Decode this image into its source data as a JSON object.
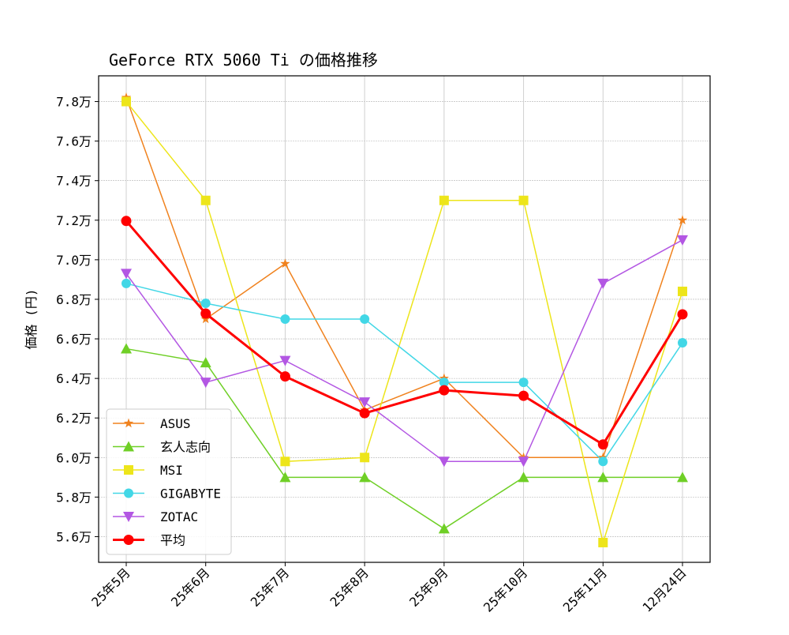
{
  "chart_data": {
    "type": "line",
    "title": "GeForce RTX 5060 Ti の価格推移",
    "xlabel": "",
    "ylabel": "価格 (円)",
    "categories": [
      "25年5月",
      "25年6月",
      "25年7月",
      "25年8月",
      "25年9月",
      "25年10月",
      "25年11月",
      "12月24日"
    ],
    "ylim": [
      54700,
      79300
    ],
    "yticks": [
      56000,
      58000,
      60000,
      62000,
      64000,
      66000,
      68000,
      70000,
      72000,
      74000,
      76000,
      78000
    ],
    "ytick_labels": [
      "5.6万",
      "5.8万",
      "6.0万",
      "6.2万",
      "6.4万",
      "6.6万",
      "6.8万",
      "7.0万",
      "7.2万",
      "7.4万",
      "7.6万",
      "7.8万"
    ],
    "grid": true,
    "legend_position": "lower-left",
    "series": [
      {
        "name": "ASUS",
        "color": "#f0821e",
        "marker": "star",
        "values": [
          78200,
          67000,
          69800,
          62400,
          64000,
          60000,
          60000,
          72000
        ]
      },
      {
        "name": "玄人志向",
        "color": "#6fcf26",
        "marker": "triangle-up",
        "values": [
          65500,
          64800,
          59000,
          59000,
          56400,
          59000,
          59000,
          59000
        ]
      },
      {
        "name": "MSI",
        "color": "#ede51a",
        "marker": "square",
        "values": [
          78000,
          73000,
          59800,
          60000,
          73000,
          73000,
          55700,
          68400
        ]
      },
      {
        "name": "GIGABYTE",
        "color": "#42d7e6",
        "marker": "circle",
        "values": [
          68800,
          67800,
          67000,
          67000,
          63800,
          63800,
          59800,
          65800
        ]
      },
      {
        "name": "ZOTAC",
        "color": "#b357e3",
        "marker": "triangle-down",
        "values": [
          69300,
          63800,
          64900,
          62800,
          59800,
          59800,
          68800,
          71000
        ]
      },
      {
        "name": "平均",
        "color": "#ff0000",
        "marker": "circle",
        "bold": true,
        "values": [
          71960,
          67280,
          64100,
          62240,
          63400,
          63120,
          60660,
          67240
        ]
      }
    ]
  }
}
